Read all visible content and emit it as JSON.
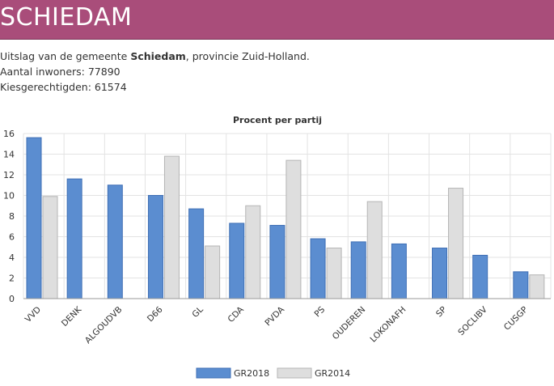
{
  "header": {
    "title": "SCHIEDAM"
  },
  "info": {
    "line1_prefix": "Uitslag van de gemeente ",
    "municipality": "Schiedam",
    "line1_suffix": ", provincie Zuid-Holland.",
    "inhabitants": "Aantal inwoners: 77890",
    "voters": "Kiesgerechtigden: 61574"
  },
  "chart_data": {
    "type": "bar",
    "title": "Procent per partij",
    "xlabel": "",
    "ylabel": "",
    "ylim": [
      0,
      16
    ],
    "yticks": [
      0,
      2,
      4,
      6,
      8,
      10,
      12,
      14,
      16
    ],
    "grid": true,
    "legend_position": "bottom",
    "categories": [
      "VVD",
      "DENK",
      "ALGOUDVB",
      "D66",
      "GL",
      "CDA",
      "PVDA",
      "PS",
      "OUDEREN",
      "LOKONAFH",
      "SP",
      "SOCLIBV",
      "CUSGP"
    ],
    "series": [
      {
        "name": "GR2018",
        "color": "#5b8dd0",
        "stroke": "#3f6fb5",
        "values": [
          15.6,
          11.6,
          11.0,
          10.0,
          8.7,
          7.3,
          7.1,
          5.8,
          5.5,
          5.3,
          4.9,
          4.2,
          2.6
        ]
      },
      {
        "name": "GR2014",
        "color": "#dedede",
        "stroke": "#b5b5b5",
        "values": [
          9.9,
          null,
          null,
          13.8,
          5.1,
          9.0,
          13.4,
          4.9,
          9.4,
          null,
          10.7,
          null,
          2.3
        ]
      }
    ]
  }
}
